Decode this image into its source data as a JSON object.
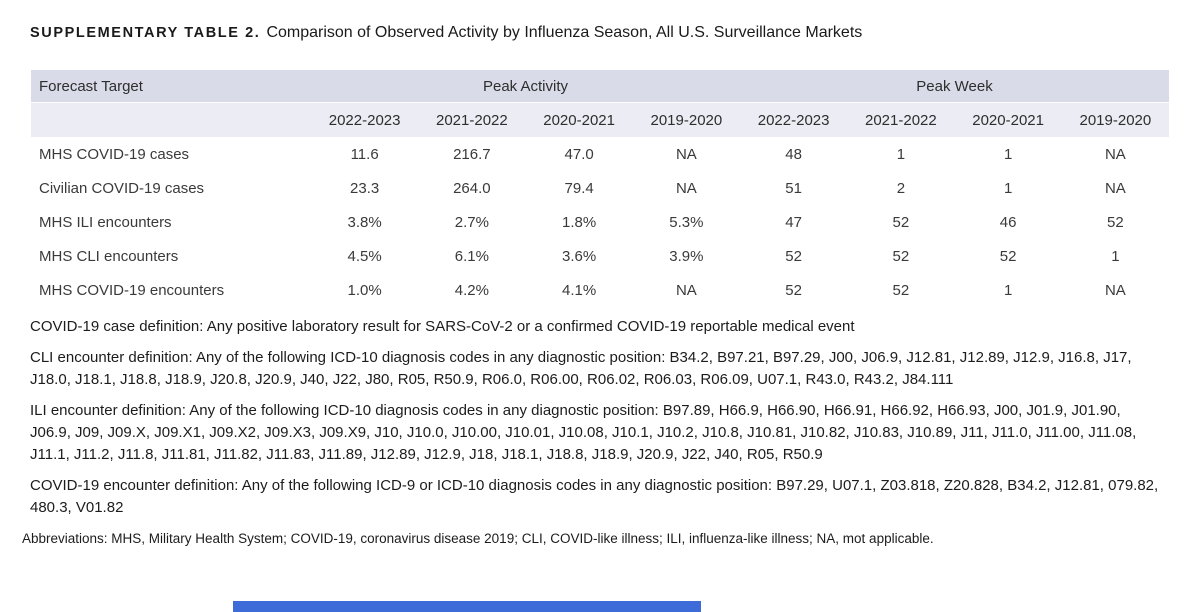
{
  "title": {
    "label": "SUPPLEMENTARY TABLE 2.",
    "text": "Comparison of Observed Activity by Influenza Season, All U.S. Surveillance Markets"
  },
  "table": {
    "target_header": "Forecast Target",
    "group_headers": [
      "Peak Activity",
      "Peak Week"
    ],
    "seasons": [
      "2022-2023",
      "2021-2022",
      "2020-2021",
      "2019-2020",
      "2022-2023",
      "2021-2022",
      "2020-2021",
      "2019-2020"
    ],
    "rows": [
      {
        "target": "MHS COVID-19 cases",
        "values": [
          "11.6",
          "216.7",
          "47.0",
          "NA",
          "48",
          "1",
          "1",
          "NA"
        ]
      },
      {
        "target": "Civilian COVID-19 cases",
        "values": [
          "23.3",
          "264.0",
          "79.4",
          "NA",
          "51",
          "2",
          "1",
          "NA"
        ]
      },
      {
        "target": "MHS ILI encounters",
        "values": [
          "3.8%",
          "2.7%",
          "1.8%",
          "5.3%",
          "47",
          "52",
          "46",
          "52"
        ]
      },
      {
        "target": "MHS CLI encounters",
        "values": [
          "4.5%",
          "6.1%",
          "3.6%",
          "3.9%",
          "52",
          "52",
          "52",
          "1"
        ]
      },
      {
        "target": "MHS COVID-19 encounters",
        "values": [
          "1.0%",
          "4.2%",
          "4.1%",
          "NA",
          "52",
          "52",
          "1",
          "NA"
        ]
      }
    ]
  },
  "footnotes": [
    "COVID-19 case definition: Any positive laboratory result for SARS-CoV-2 or a confirmed COVID-19 reportable medical event",
    "CLI encounter definition: Any of the following ICD-10 diagnosis codes in any diagnostic position: B34.2, B97.21, B97.29, J00, J06.9, J12.81, J12.89, J12.9, J16.8, J17, J18.0, J18.1, J18.8, J18.9, J20.8, J20.9, J40, J22, J80, R05, R50.9, R06.0, R06.00, R06.02, R06.03, R06.09, U07.1, R43.0, R43.2, J84.111",
    "ILI encounter definition: Any of the following ICD-10 diagnosis codes in any diagnostic position: B97.89, H66.9, H66.90, H66.91, H66.92, H66.93, J00, J01.9, J01.90, J06.9, J09, J09.X, J09.X1, J09.X2, J09.X3, J09.X9, J10, J10.0, J10.00, J10.01, J10.08, J10.1, J10.2, J10.8, J10.81, J10.82, J10.83, J10.89, J11, J11.0, J11.00, J11.08, J11.1, J11.2, J11.8, J11.81, J11.82, J11.83, J11.89, J12.89, J12.9, J18, J18.1, J18.8, J18.9, J20.9, J22, J40, R05, R50.9",
    "COVID-19 encounter definition: Any of the following ICD-9 or ICD-10 diagnosis codes in any diagnostic position: B97.29, U07.1, Z03.818, Z20.828, B34.2, J12.81, 079.82, 480.3, V01.82"
  ],
  "abbreviations": "Abbreviations: MHS, Military Health System; COVID-19, coronavirus disease 2019; CLI, COVID-like illness; ILI, influenza-like illness; NA, mot applicable.",
  "colors": {
    "header_band": "#d9dbe8",
    "header_band_light": "#ebecf4",
    "scrollbar_blue": "#3d6bd8"
  }
}
